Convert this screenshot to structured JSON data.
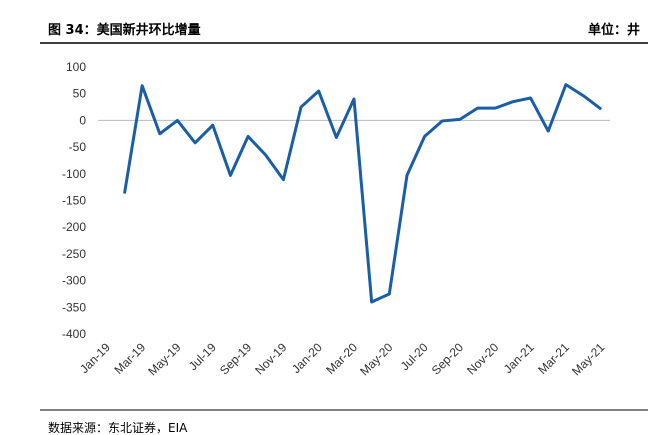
{
  "chart_data": {
    "type": "line",
    "title": "图 34：美国新井环比增量",
    "unit_label": "单位：井",
    "source": "数据来源：东北证券，EIA",
    "categories": [
      "Jan-19",
      null,
      "Mar-19",
      null,
      "May-19",
      null,
      "Jul-19",
      null,
      "Sep-19",
      null,
      "Nov-19",
      null,
      "Jan-20",
      null,
      "Mar-20",
      null,
      "May-20",
      null,
      "Jul-20",
      null,
      "Sep-20",
      null,
      "Nov-20",
      null,
      "Jan-21",
      null,
      "Mar-21",
      null,
      "May-21"
    ],
    "series": [
      {
        "name": "新井环比增量",
        "color": "#1a5ea8",
        "values": [
          null,
          -137,
          65,
          -25,
          0,
          -42,
          -9,
          -103,
          -30,
          -65,
          -111,
          25,
          55,
          -32,
          40,
          -340,
          -325,
          -103,
          -30,
          -1,
          2,
          23,
          23,
          35,
          42,
          -20,
          67,
          46,
          21
        ]
      }
    ],
    "ylim": [
      -400,
      100
    ],
    "yticks": [
      -400,
      -350,
      -300,
      -250,
      -200,
      -150,
      -100,
      -50,
      0,
      50,
      100
    ],
    "grid": false
  }
}
